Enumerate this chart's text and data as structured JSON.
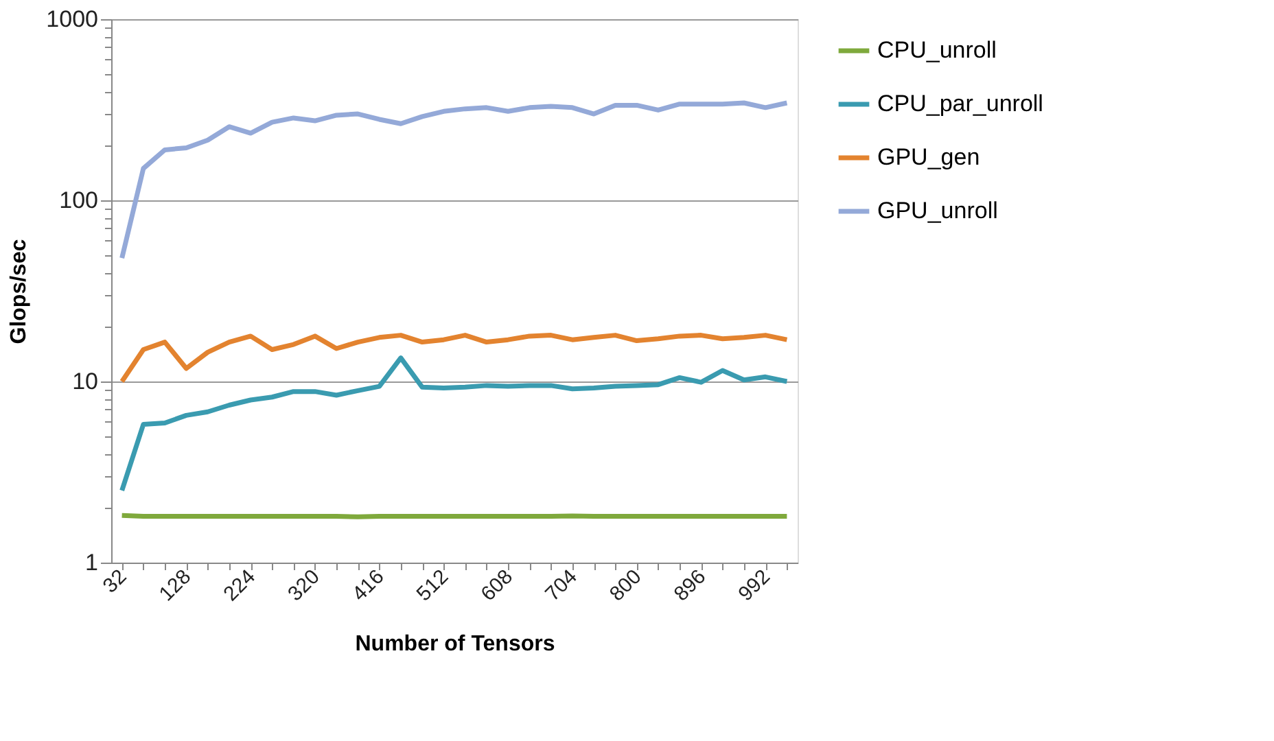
{
  "chart_data": {
    "type": "line",
    "xlabel": "Number of Tensors",
    "ylabel": "Glops/sec",
    "log": "y",
    "ylim": [
      1,
      1000
    ],
    "yticks": [
      1,
      {
        "value": 2,
        "label": null
      },
      {
        "value": 3,
        "label": null
      },
      {
        "value": 4,
        "label": null
      },
      {
        "value": 5,
        "label": null
      },
      {
        "value": 6,
        "label": null
      },
      {
        "value": 7,
        "label": null
      },
      {
        "value": 8,
        "label": null
      },
      {
        "value": 9,
        "label": null
      },
      10,
      {
        "value": 20,
        "label": null
      },
      {
        "value": 30,
        "label": null
      },
      {
        "value": 40,
        "label": null
      },
      {
        "value": 50,
        "label": null
      },
      {
        "value": 60,
        "label": null
      },
      {
        "value": 70,
        "label": null
      },
      {
        "value": 80,
        "label": null
      },
      {
        "value": 90,
        "label": null
      },
      100,
      {
        "value": 200,
        "label": null
      },
      {
        "value": 300,
        "label": null
      },
      {
        "value": 400,
        "label": null
      },
      {
        "value": 500,
        "label": null
      },
      {
        "value": 600,
        "label": null
      },
      {
        "value": 700,
        "label": null
      },
      {
        "value": 800,
        "label": null
      },
      {
        "value": 900,
        "label": null
      },
      1000
    ],
    "grid": "y",
    "legend": "right",
    "marker": "none",
    "line_style": "solid",
    "categories": [
      "32",
      null,
      null,
      "128",
      null,
      null,
      "224",
      null,
      null,
      "320",
      null,
      null,
      "416",
      null,
      null,
      "512",
      null,
      null,
      "608",
      null,
      null,
      "704",
      null,
      null,
      "800",
      null,
      null,
      "896",
      null,
      null,
      "992",
      null
    ],
    "series": [
      {
        "name": "CPU_unroll",
        "color": "#7fa93c",
        "values": [
          1.82,
          1.8,
          1.8,
          1.8,
          1.8,
          1.8,
          1.8,
          1.8,
          1.8,
          1.8,
          1.8,
          1.79,
          1.8,
          1.8,
          1.8,
          1.8,
          1.8,
          1.8,
          1.8,
          1.8,
          1.8,
          1.81,
          1.8,
          1.8,
          1.8,
          1.8,
          1.8,
          1.8,
          1.8,
          1.8,
          1.8,
          1.8
        ]
      },
      {
        "name": "CPU_par_unroll",
        "color": "#3a9bb0",
        "values": [
          2.5,
          5.8,
          5.9,
          6.5,
          6.8,
          7.4,
          7.9,
          8.2,
          8.8,
          8.8,
          8.4,
          8.9,
          9.4,
          13.5,
          9.3,
          9.2,
          9.3,
          9.5,
          9.4,
          9.5,
          9.5,
          9.1,
          9.2,
          9.4,
          9.5,
          9.6,
          10.5,
          9.9,
          11.5,
          10.2,
          10.6,
          10.0
        ]
      },
      {
        "name": "GPU_gen",
        "color": "#e3832f",
        "values": [
          10,
          15,
          16.5,
          11.8,
          14.5,
          16.5,
          17.8,
          15,
          16,
          17.8,
          15.2,
          16.5,
          17.5,
          18,
          16.5,
          17,
          18,
          16.5,
          17,
          17.8,
          18,
          17,
          17.5,
          18,
          16.8,
          17.2,
          17.8,
          18,
          17.2,
          17.5,
          18,
          17
        ]
      },
      {
        "name": "GPU_unroll",
        "color": "#94a9d8",
        "values": [
          48,
          150,
          190,
          195,
          215,
          255,
          235,
          270,
          285,
          275,
          295,
          300,
          280,
          265,
          290,
          310,
          320,
          325,
          310,
          325,
          330,
          325,
          300,
          335,
          335,
          315,
          340,
          340,
          340,
          345,
          325,
          345
        ]
      }
    ]
  }
}
